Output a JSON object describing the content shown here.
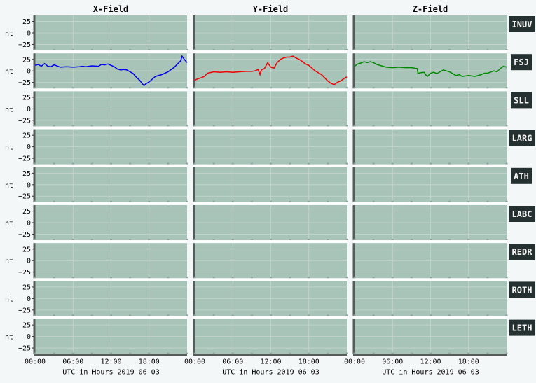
{
  "chart_data": {
    "type": "line",
    "columns": [
      "X-Field",
      "Y-Field",
      "Z-Field"
    ],
    "stations": [
      "INUV",
      "FSJ",
      "SLL",
      "LARG",
      "ATH",
      "LABC",
      "REDR",
      "ROTH",
      "LETH"
    ],
    "ylabel": "nt",
    "yticks": [
      25,
      0,
      -25
    ],
    "ylim": [
      -38,
      38
    ],
    "xticks": [
      "00:00",
      "06:00",
      "12:00",
      "18:00"
    ],
    "xlim_hours": [
      0,
      24
    ],
    "xlabel": "UTC in Hours  2019 06 03",
    "grid": true,
    "colors": {
      "page_bg": "#f4f7f8",
      "panel_bg": "#a8c3b8",
      "grid": "#c6d7d0",
      "axis": "#555d5a",
      "station_box": "#253130",
      "station_text": "#f2f2f2"
    },
    "series": [
      {
        "station": "FSJ",
        "component": "X-Field",
        "color": "#0000ee",
        "x": [
          0,
          0.5,
          1,
          1.5,
          2,
          2.5,
          3,
          4,
          5,
          6,
          7,
          7.5,
          8,
          9,
          10,
          10.5,
          11,
          11.5,
          12,
          12.5,
          13,
          13.5,
          14,
          14.5,
          15,
          15.5,
          16,
          16.5,
          17,
          17.2,
          17.5,
          18,
          18.5,
          19,
          20,
          20.5,
          21,
          21.5,
          22,
          22.5,
          23,
          23.2,
          23.5,
          24
        ],
        "y": [
          12,
          14,
          10,
          16,
          10,
          9,
          13,
          8,
          9,
          8,
          9,
          10,
          9,
          11,
          10,
          14,
          13,
          15,
          12,
          9,
          4,
          2,
          3,
          2,
          -2,
          -6,
          -14,
          -20,
          -29,
          -32,
          -28,
          -24,
          -18,
          -12,
          -8,
          -5,
          -2,
          3,
          8,
          15,
          22,
          32,
          26,
          18
        ]
      },
      {
        "station": "FSJ",
        "component": "Y-Field",
        "color": "#ee0000",
        "x": [
          0,
          0.5,
          1,
          1.5,
          2,
          3,
          4,
          5,
          6,
          7,
          8,
          9,
          9.5,
          10,
          10.3,
          10.5,
          11,
          11.5,
          12,
          12.5,
          13,
          13.5,
          14,
          14.5,
          15,
          15.5,
          16,
          16.5,
          17,
          17.5,
          18,
          18.5,
          19,
          20,
          20.5,
          21,
          21.5,
          22,
          22.5,
          23,
          23.5,
          24
        ],
        "y": [
          -20,
          -17,
          -15,
          -12,
          -5,
          -2,
          -3,
          -2,
          -3,
          -2,
          -1,
          -1,
          0,
          3,
          -8,
          2,
          5,
          18,
          8,
          6,
          18,
          25,
          28,
          30,
          30,
          32,
          28,
          25,
          20,
          15,
          12,
          6,
          0,
          -8,
          -15,
          -22,
          -27,
          -30,
          -25,
          -22,
          -17,
          -13
        ]
      },
      {
        "station": "FSJ",
        "component": "Z-Field",
        "color": "#008800",
        "x": [
          0,
          0.5,
          1,
          1.5,
          2,
          2.5,
          3,
          3.5,
          4,
          5,
          6,
          7,
          8,
          9,
          9.9,
          10,
          10.5,
          11,
          11.2,
          11.5,
          12,
          12.5,
          13,
          14,
          14.5,
          15,
          16,
          16.5,
          17,
          18,
          19,
          20,
          20.5,
          21,
          22,
          22.5,
          23,
          23.5,
          24
        ],
        "y": [
          10,
          15,
          17,
          20,
          18,
          20,
          18,
          14,
          12,
          8,
          7,
          8,
          7,
          7,
          5,
          -5,
          -4,
          -3,
          -8,
          -12,
          -5,
          -3,
          -6,
          2,
          0,
          -2,
          -10,
          -8,
          -12,
          -10,
          -12,
          -8,
          -5,
          -5,
          0,
          -2,
          5,
          10,
          8
        ]
      }
    ]
  }
}
